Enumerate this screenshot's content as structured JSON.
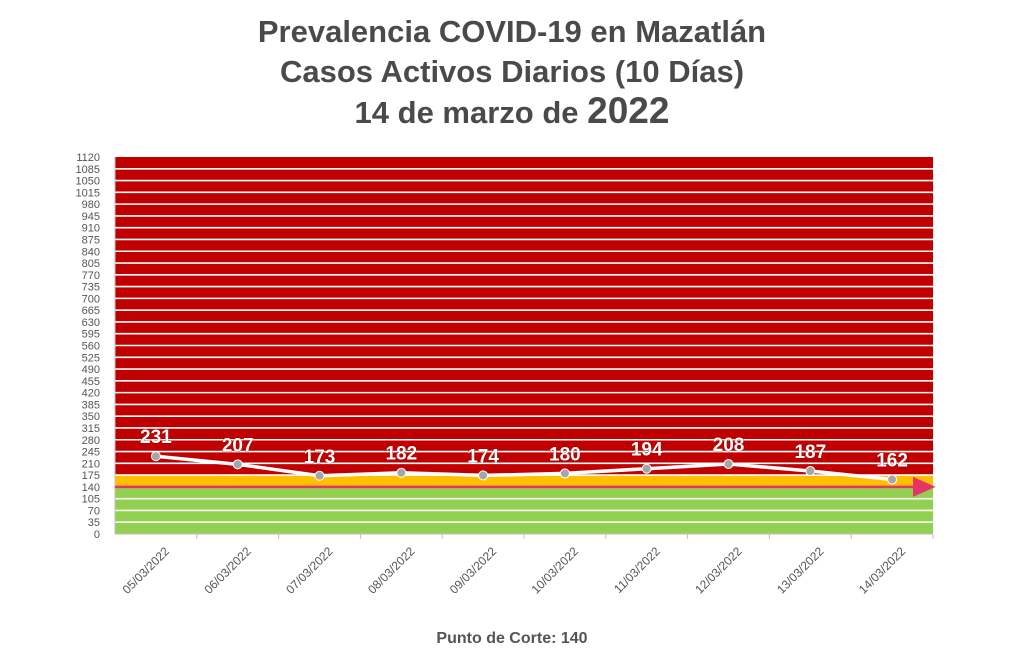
{
  "title": {
    "line1": "Prevalencia COVID-19 en Mazatlán",
    "line2": "Casos Activos Diarios (10 Días)",
    "line3_prefix": "14 de marzo de ",
    "line3_year": "2022"
  },
  "footer": "Punto de Corte: 140",
  "colors": {
    "red_zone": "#c00000",
    "yellow_zone": "#ffc000",
    "green_zone": "#92d050",
    "series_line": "#ffffff",
    "marker": "#a6a6a6",
    "cutoff_line": "#e8336a",
    "axis_text": "#555555"
  },
  "chart_data": {
    "type": "line",
    "title": "Prevalencia COVID-19 en Mazatlán — Casos Activos Diarios (10 Días)",
    "categories": [
      "05/03/2022",
      "06/03/2022",
      "07/03/2022",
      "08/03/2022",
      "09/03/2022",
      "10/03/2022",
      "11/03/2022",
      "12/03/2022",
      "13/03/2022",
      "14/03/2022"
    ],
    "values": [
      231,
      207,
      173,
      182,
      174,
      180,
      194,
      208,
      187,
      162
    ],
    "ylim": [
      0,
      1120
    ],
    "ytick_step": 35,
    "cutoff": 140,
    "zones": [
      {
        "from": 0,
        "to": 140,
        "color": "green"
      },
      {
        "from": 140,
        "to": 175,
        "color": "yellow"
      },
      {
        "from": 175,
        "to": 1120,
        "color": "red"
      }
    ],
    "grid": true,
    "xlabel": "",
    "ylabel": ""
  }
}
